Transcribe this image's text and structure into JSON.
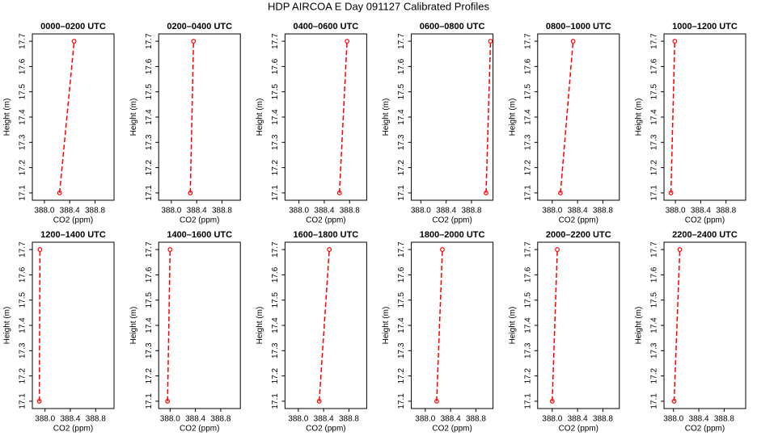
{
  "title": "HDP AIRCOA E  Day 091127  Calibrated Profiles",
  "chart_data": [
    {
      "type": "line",
      "title": "0000–0200 UTC",
      "x_label": "CO2 (ppm)",
      "y_label": "Height (m)",
      "x": [
        388.24,
        388.47
      ],
      "values": [
        17.1,
        17.7
      ],
      "color": "#ff0000",
      "xlim": [
        387.81,
        389.1
      ],
      "ylim": [
        17.071,
        17.729
      ],
      "xticks": [
        {
          "value": 388,
          "label": "388.0"
        },
        388.4,
        388.8
      ],
      "yticks": [
        17.1,
        17.2,
        17.3,
        17.4,
        17.5,
        17.6,
        17.7
      ]
    },
    {
      "type": "line",
      "title": "0200–0400 UTC",
      "x_label": "CO2 (ppm)",
      "y_label": "Height (m)",
      "x": [
        388.3,
        388.35
      ],
      "values": [
        17.1,
        17.7
      ],
      "color": "#ff0000",
      "xlim": [
        387.8,
        389.09
      ],
      "ylim": [
        17.071,
        17.729
      ],
      "xticks": [
        {
          "value": 388,
          "label": "388.0"
        },
        388.4,
        388.8
      ],
      "yticks": [
        17.1,
        17.2,
        17.3,
        17.4,
        17.5,
        17.6,
        17.7
      ]
    },
    {
      "type": "line",
      "title": "0400–0600 UTC",
      "x_label": "CO2 (ppm)",
      "y_label": "Height (m)",
      "x": [
        388.64,
        388.76
      ],
      "values": [
        17.1,
        17.7
      ],
      "color": "#ff0000",
      "xlim": [
        387.78,
        389.07
      ],
      "ylim": [
        17.071,
        17.729
      ],
      "xticks": [
        {
          "value": 388,
          "label": "388.0"
        },
        388.4,
        388.8
      ],
      "yticks": [
        17.1,
        17.2,
        17.3,
        17.4,
        17.5,
        17.6,
        17.7
      ]
    },
    {
      "type": "line",
      "title": "0600–0800 UTC",
      "x_label": "CO2 (ppm)",
      "y_label": "Height (m)",
      "x": [
        389.03,
        389.1
      ],
      "values": [
        17.1,
        17.7
      ],
      "color": "#ff0000",
      "xlim": [
        387.85,
        389.14
      ],
      "ylim": [
        17.071,
        17.729
      ],
      "xticks": [
        {
          "value": 388,
          "label": "388.0"
        },
        388.4,
        388.8
      ],
      "yticks": [
        17.1,
        17.2,
        17.3,
        17.4,
        17.5,
        17.6,
        17.7
      ]
    },
    {
      "type": "line",
      "title": "0800–1000 UTC",
      "x_label": "CO2 (ppm)",
      "y_label": "Height (m)",
      "x": [
        388.13,
        388.33
      ],
      "values": [
        17.1,
        17.7
      ],
      "color": "#ff0000",
      "xlim": [
        387.77,
        389.06
      ],
      "ylim": [
        17.071,
        17.729
      ],
      "xticks": [
        {
          "value": 388,
          "label": "388.0"
        },
        388.4,
        388.8
      ],
      "yticks": [
        17.1,
        17.2,
        17.3,
        17.4,
        17.5,
        17.6,
        17.7
      ]
    },
    {
      "type": "line",
      "title": "1000–1200 UTC",
      "x_label": "CO2 (ppm)",
      "y_label": "Height (m)",
      "x": [
        387.93,
        387.99
      ],
      "values": [
        17.1,
        17.7
      ],
      "color": "#ff0000",
      "xlim": [
        387.82,
        389.11
      ],
      "ylim": [
        17.071,
        17.729
      ],
      "xticks": [
        {
          "value": 388,
          "label": "388.0"
        },
        388.4,
        388.8
      ],
      "yticks": [
        17.1,
        17.2,
        17.3,
        17.4,
        17.5,
        17.6,
        17.7
      ]
    },
    {
      "type": "line",
      "title": "1200–1400 UTC",
      "x_label": "CO2 (ppm)",
      "y_label": "Height (m)",
      "x": [
        387.91,
        387.92
      ],
      "values": [
        17.1,
        17.7
      ],
      "color": "#ff0000",
      "xlim": [
        387.8,
        389.09
      ],
      "ylim": [
        17.071,
        17.729
      ],
      "xticks": [
        {
          "value": 388,
          "label": "388.0"
        },
        388.4,
        388.8
      ],
      "yticks": [
        17.1,
        17.2,
        17.3,
        17.4,
        17.5,
        17.6,
        17.7
      ]
    },
    {
      "type": "line",
      "title": "1400–1600 UTC",
      "x_label": "CO2 (ppm)",
      "y_label": "Height (m)",
      "x": [
        387.96,
        388.0
      ],
      "values": [
        17.1,
        17.7
      ],
      "color": "#ff0000",
      "xlim": [
        387.82,
        389.11
      ],
      "ylim": [
        17.071,
        17.729
      ],
      "xticks": [
        {
          "value": 388,
          "label": "388.0"
        },
        388.4,
        388.8
      ],
      "yticks": [
        17.1,
        17.2,
        17.3,
        17.4,
        17.5,
        17.6,
        17.7
      ]
    },
    {
      "type": "line",
      "title": "1600–1800 UTC",
      "x_label": "CO2 (ppm)",
      "y_label": "Height (m)",
      "x": [
        388.33,
        388.49
      ],
      "values": [
        17.1,
        17.7
      ],
      "color": "#ff0000",
      "xlim": [
        387.79,
        389.08
      ],
      "ylim": [
        17.071,
        17.729
      ],
      "xticks": [
        {
          "value": 388,
          "label": "388.0"
        },
        388.4,
        388.8
      ],
      "yticks": [
        17.1,
        17.2,
        17.3,
        17.4,
        17.5,
        17.6,
        17.7
      ]
    },
    {
      "type": "line",
      "title": "1800–2000 UTC",
      "x_label": "CO2 (ppm)",
      "y_label": "Height (m)",
      "x": [
        388.18,
        388.27
      ],
      "values": [
        17.1,
        17.7
      ],
      "color": "#ff0000",
      "xlim": [
        387.78,
        389.07
      ],
      "ylim": [
        17.071,
        17.729
      ],
      "xticks": [
        {
          "value": 388,
          "label": "388.0"
        },
        388.4,
        388.8
      ],
      "yticks": [
        17.1,
        17.2,
        17.3,
        17.4,
        17.5,
        17.6,
        17.7
      ]
    },
    {
      "type": "line",
      "title": "2000–2200 UTC",
      "x_label": "CO2 (ppm)",
      "y_label": "Height (m)",
      "x": [
        388.0,
        388.08
      ],
      "values": [
        17.1,
        17.7
      ],
      "color": "#ff0000",
      "xlim": [
        387.77,
        389.06
      ],
      "ylim": [
        17.071,
        17.729
      ],
      "xticks": [
        {
          "value": 388,
          "label": "388.0"
        },
        388.4,
        388.8
      ],
      "yticks": [
        17.1,
        17.2,
        17.3,
        17.4,
        17.5,
        17.6,
        17.7
      ]
    },
    {
      "type": "line",
      "title": "2200–2400 UTC",
      "x_label": "CO2 (ppm)",
      "y_label": "Height (m)",
      "x": [
        388.01,
        388.1
      ],
      "values": [
        17.1,
        17.7
      ],
      "color": "#ff0000",
      "xlim": [
        387.85,
        389.14
      ],
      "ylim": [
        17.071,
        17.729
      ],
      "xticks": [
        {
          "value": 388,
          "label": "388.0"
        },
        388.4,
        388.8
      ],
      "yticks": [
        17.1,
        17.2,
        17.3,
        17.4,
        17.5,
        17.6,
        17.7
      ]
    }
  ]
}
